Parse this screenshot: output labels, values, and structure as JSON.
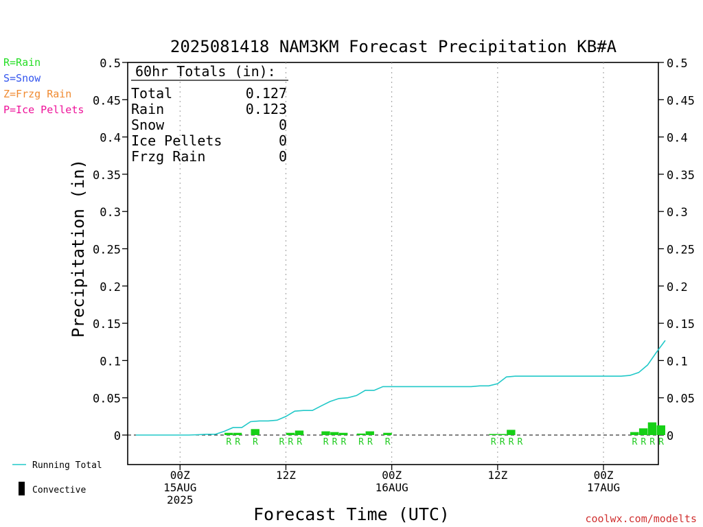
{
  "chart_data": {
    "type": "bar",
    "title": "2025081418 NAM3KM Forecast Precipitation KB#A",
    "xlabel": "Forecast Time (UTC)",
    "ylabel": "Precipitation (in)",
    "ylim": [
      0,
      0.5
    ],
    "y_ticks": [
      "0",
      "0.05",
      "0.1",
      "0.15",
      "0.2",
      "0.25",
      "0.3",
      "0.35",
      "0.4",
      "0.45",
      "0.5"
    ],
    "x_unit": "forecast hour",
    "xlim": [
      0,
      60
    ],
    "x_ticks": [
      {
        "hour": 5,
        "lines": [
          "00Z",
          "15AUG",
          "2025"
        ]
      },
      {
        "hour": 17,
        "lines": [
          "12Z"
        ]
      },
      {
        "hour": 29,
        "lines": [
          "00Z",
          "16AUG"
        ]
      },
      {
        "hour": 41,
        "lines": [
          "12Z"
        ]
      },
      {
        "hour": 53,
        "lines": [
          "00Z",
          "17AUG"
        ]
      }
    ],
    "grid": "vertical dotted at 00Z/12Z",
    "legend": [
      {
        "code": "R",
        "text": "R=Rain",
        "color": "#22dd22"
      },
      {
        "code": "S",
        "text": "S=Snow",
        "color": "#3355ee"
      },
      {
        "code": "Z",
        "text": "Z=Frzg Rain",
        "color": "#f08a30"
      },
      {
        "code": "P",
        "text": "P=Ice Pellets",
        "color": "#ee1199"
      }
    ],
    "legend2": [
      {
        "name": "running_total",
        "text": "Running Total",
        "color": "#20c8c8"
      },
      {
        "name": "convective",
        "text": "Convective",
        "color": "#000000"
      }
    ],
    "totals": {
      "header": "60hr Totals (in):",
      "rows": [
        {
          "label": "Total",
          "value": "0.127"
        },
        {
          "label": "Rain",
          "value": "0.123"
        },
        {
          "label": "Snow",
          "value": "0"
        },
        {
          "label": "Ice Pellets",
          "value": "0"
        },
        {
          "label": "Frzg Rain",
          "value": "0"
        }
      ]
    },
    "series": [
      {
        "name": "Running Total",
        "color": "#20c8c8",
        "x": [
          0,
          1,
          2,
          3,
          4,
          5,
          6,
          7,
          8,
          9,
          10,
          11,
          12,
          13,
          14,
          15,
          16,
          17,
          18,
          19,
          20,
          21,
          22,
          23,
          24,
          25,
          26,
          27,
          28,
          29,
          30,
          31,
          32,
          33,
          34,
          35,
          36,
          37,
          38,
          39,
          40,
          41,
          42,
          43,
          44,
          45,
          46,
          47,
          48,
          49,
          50,
          51,
          52,
          53,
          54,
          55,
          56,
          57,
          58,
          59,
          60
        ],
        "y": [
          0,
          0,
          0,
          0,
          0,
          0,
          0,
          0.0005,
          0.001,
          0.001,
          0.005,
          0.01,
          0.01,
          0.018,
          0.019,
          0.019,
          0.02,
          0.025,
          0.032,
          0.033,
          0.033,
          0.039,
          0.045,
          0.049,
          0.05,
          0.053,
          0.06,
          0.06,
          0.065,
          0.065,
          0.065,
          0.065,
          0.065,
          0.065,
          0.065,
          0.065,
          0.065,
          0.065,
          0.065,
          0.066,
          0.066,
          0.069,
          0.078,
          0.079,
          0.079,
          0.079,
          0.079,
          0.079,
          0.079,
          0.079,
          0.079,
          0.079,
          0.079,
          0.079,
          0.079,
          0.079,
          0.08,
          0.084,
          0.094,
          0.111,
          0.127
        ]
      }
    ],
    "bars": [
      {
        "hour": 11,
        "value": 0.003,
        "type": "R"
      },
      {
        "hour": 12,
        "value": 0.003,
        "type": "R"
      },
      {
        "hour": 14,
        "value": 0.008,
        "type": "R"
      },
      {
        "hour": 18,
        "value": 0.003,
        "type": "R"
      },
      {
        "hour": 19,
        "value": 0.006,
        "type": "R"
      },
      {
        "hour": 22,
        "value": 0.005,
        "type": "R"
      },
      {
        "hour": 23,
        "value": 0.004,
        "type": "R"
      },
      {
        "hour": 24,
        "value": 0.003,
        "type": "R"
      },
      {
        "hour": 26,
        "value": 0.002,
        "type": "R"
      },
      {
        "hour": 27,
        "value": 0.005,
        "type": "R"
      },
      {
        "hour": 29,
        "value": 0.003,
        "type": "R"
      },
      {
        "hour": 41,
        "value": 0.001,
        "type": "R"
      },
      {
        "hour": 42,
        "value": 0.001,
        "type": "R"
      },
      {
        "hour": 43,
        "value": 0.007,
        "type": "R"
      },
      {
        "hour": 57,
        "value": 0.004,
        "type": "R"
      },
      {
        "hour": 58,
        "value": 0.009,
        "type": "R"
      },
      {
        "hour": 59,
        "value": 0.017,
        "type": "R"
      },
      {
        "hour": 60,
        "value": 0.013,
        "type": "R"
      }
    ],
    "labels": [
      {
        "hour": 11,
        "text": "R"
      },
      {
        "hour": 12,
        "text": "R"
      },
      {
        "hour": 14,
        "text": "R"
      },
      {
        "hour": 17,
        "text": "R"
      },
      {
        "hour": 18,
        "text": "R"
      },
      {
        "hour": 19,
        "text": "R"
      },
      {
        "hour": 22,
        "text": "R"
      },
      {
        "hour": 23,
        "text": "R"
      },
      {
        "hour": 24,
        "text": "R"
      },
      {
        "hour": 26,
        "text": "R"
      },
      {
        "hour": 27,
        "text": "R"
      },
      {
        "hour": 29,
        "text": "R"
      },
      {
        "hour": 41,
        "text": "R"
      },
      {
        "hour": 42,
        "text": "R"
      },
      {
        "hour": 43,
        "text": "R"
      },
      {
        "hour": 44,
        "text": "R"
      },
      {
        "hour": 57,
        "text": "R"
      },
      {
        "hour": 58,
        "text": "R"
      },
      {
        "hour": 59,
        "text": "R"
      },
      {
        "hour": 60,
        "text": "R"
      }
    ],
    "watermark": "coolwx.com/modelts"
  }
}
